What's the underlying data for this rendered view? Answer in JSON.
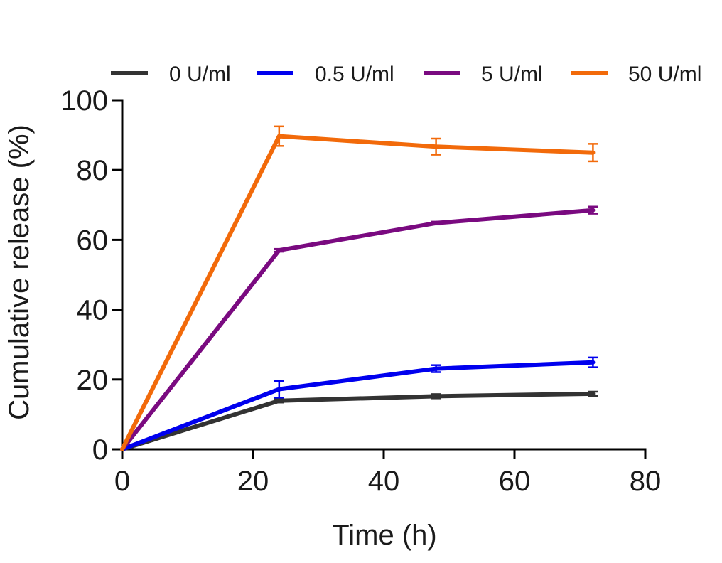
{
  "chart_data": {
    "type": "line",
    "title": "",
    "xlabel": "Time (h)",
    "ylabel": "Cumulative release  (%)",
    "xlim": [
      0,
      80
    ],
    "ylim": [
      0,
      100
    ],
    "xticks": [
      0,
      20,
      40,
      60,
      80
    ],
    "yticks": [
      0,
      20,
      40,
      60,
      80,
      100
    ],
    "xtick_labels": [
      "0",
      "20",
      "40",
      "60",
      "80"
    ],
    "ytick_labels": [
      "0",
      "20",
      "40",
      "60",
      "80",
      "100"
    ],
    "grid": false,
    "legend_position": "top",
    "x": [
      0,
      24,
      48,
      72
    ],
    "series": [
      {
        "name": "0 U/ml",
        "color": "#333333",
        "values": [
          0,
          13.9,
          15.2,
          15.9
        ],
        "errors": [
          0,
          0.5,
          0.6,
          0.6
        ]
      },
      {
        "name": "0.5 U/ml",
        "color": "#0000ee",
        "values": [
          0,
          17.2,
          23.1,
          24.9
        ],
        "errors": [
          0,
          2.4,
          1.0,
          1.4
        ]
      },
      {
        "name": "5 U/ml",
        "color": "#7a0a80",
        "values": [
          0,
          57.0,
          64.8,
          68.5
        ],
        "errors": [
          0,
          0.4,
          0.4,
          1.0
        ]
      },
      {
        "name": "50 U/ml",
        "color": "#f26a0a",
        "values": [
          0,
          89.7,
          86.7,
          85.0
        ],
        "errors": [
          0,
          2.8,
          2.3,
          2.5
        ]
      }
    ]
  }
}
